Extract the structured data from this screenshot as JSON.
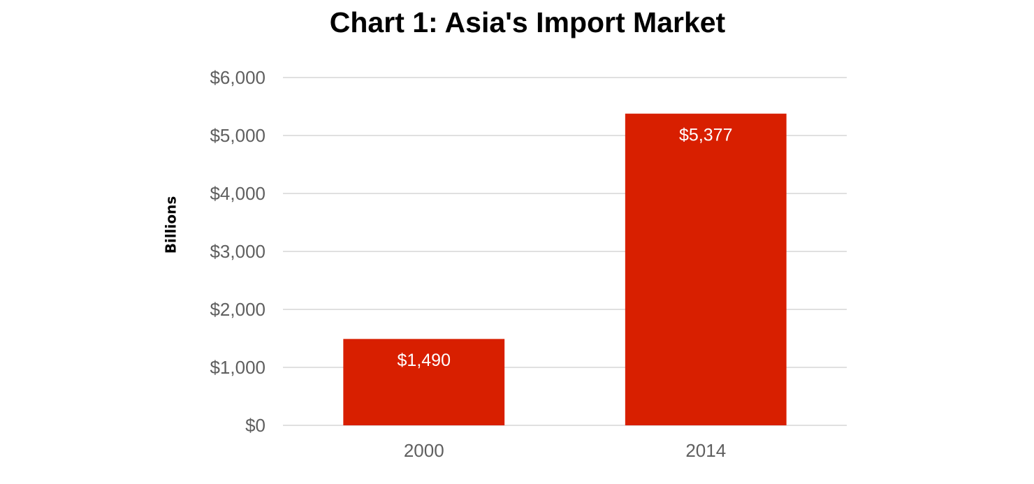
{
  "chart_data": {
    "type": "bar",
    "title": "Chart 1: Asia's Import Market",
    "y_label": "Billions",
    "categories": [
      "2000",
      "2014"
    ],
    "values": [
      1490,
      5377
    ],
    "value_labels": [
      "$1,490",
      "$5,377"
    ],
    "color": "#d81f00",
    "ylim": [
      0,
      6000
    ],
    "yticks": [
      {
        "value": 0,
        "label": "$0"
      },
      {
        "value": 1000,
        "label": "$1,000"
      },
      {
        "value": 2000,
        "label": "$2,000"
      },
      {
        "value": 3000,
        "label": "$3,000"
      },
      {
        "value": 4000,
        "label": "$4,000"
      },
      {
        "value": 5000,
        "label": "$5,000"
      },
      {
        "value": 6000,
        "label": "$6,000"
      }
    ],
    "grid": true
  }
}
